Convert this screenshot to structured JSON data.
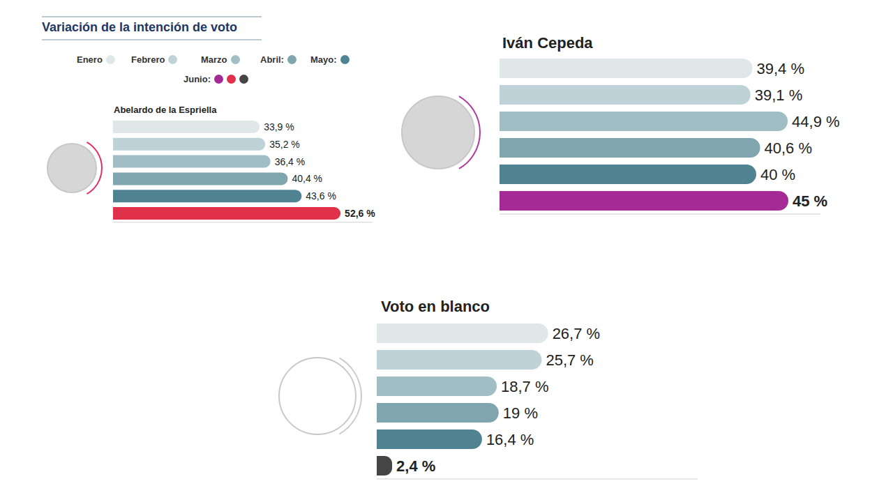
{
  "title": "Variación de la intención de voto",
  "legend_items": [
    {
      "label": "Enero",
      "colors": [
        "#dfe7e9"
      ]
    },
    {
      "label": "Febrero",
      "colors": [
        "#bfd2d7"
      ]
    },
    {
      "label": "Marzo",
      "colors": [
        "#a2bec5"
      ]
    },
    {
      "label": "Abril:",
      "colors": [
        "#7fa5ae"
      ]
    },
    {
      "label": "Mayo:",
      "colors": [
        "#4f8392"
      ]
    },
    {
      "label": "Junio:",
      "colors": [
        "#a52a96",
        "#e0304a",
        "#454545"
      ]
    }
  ],
  "chart_data": [
    {
      "type": "bar",
      "orientation": "horizontal",
      "title": "Abelardo de la Espriella",
      "categories": [
        "Enero",
        "Febrero",
        "Marzo",
        "Abril",
        "Mayo",
        "Junio"
      ],
      "values": [
        33.9,
        35.2,
        36.4,
        40.4,
        43.6,
        52.6
      ],
      "value_labels": [
        "33,9 %",
        "35,2 %",
        "36,4 %",
        "40,4 %",
        "43,6 %",
        "52,6 %"
      ],
      "colors": [
        "#dfe7e9",
        "#bfd2d7",
        "#a2bec5",
        "#7fa5ae",
        "#4f8392",
        "#e0304a"
      ],
      "xlim": [
        0,
        60
      ],
      "data_labels": true,
      "tick_labels": false,
      "grid": false
    },
    {
      "type": "bar",
      "orientation": "horizontal",
      "title": "Iván Cepeda",
      "categories": [
        "Enero",
        "Febrero",
        "Marzo",
        "Abril",
        "Mayo",
        "Junio"
      ],
      "values": [
        39.4,
        39.1,
        44.9,
        40.6,
        40,
        45
      ],
      "value_labels": [
        "39,4 %",
        "39,1 %",
        "44,9 %",
        "40,6 %",
        "40 %",
        "45 %"
      ],
      "colors": [
        "#dfe7e9",
        "#bfd2d7",
        "#a2bec5",
        "#7fa5ae",
        "#4f8392",
        "#a52a96"
      ],
      "xlim": [
        0,
        50
      ],
      "data_labels": true,
      "tick_labels": false,
      "grid": false
    },
    {
      "type": "bar",
      "orientation": "horizontal",
      "title": "Voto en blanco",
      "categories": [
        "Enero",
        "Febrero",
        "Marzo",
        "Abril",
        "Mayo",
        "Junio"
      ],
      "values": [
        26.7,
        25.7,
        18.7,
        19,
        16.4,
        2.4
      ],
      "value_labels": [
        "26,7 %",
        "25,7 %",
        "18,7 %",
        "19 %",
        "16,4 %",
        "2,4 %"
      ],
      "colors": [
        "#dfe7e9",
        "#bfd2d7",
        "#a2bec5",
        "#7fa5ae",
        "#4f8392",
        "#454545"
      ],
      "xlim": [
        0,
        50
      ],
      "data_labels": true,
      "tick_labels": false,
      "grid": false
    }
  ]
}
